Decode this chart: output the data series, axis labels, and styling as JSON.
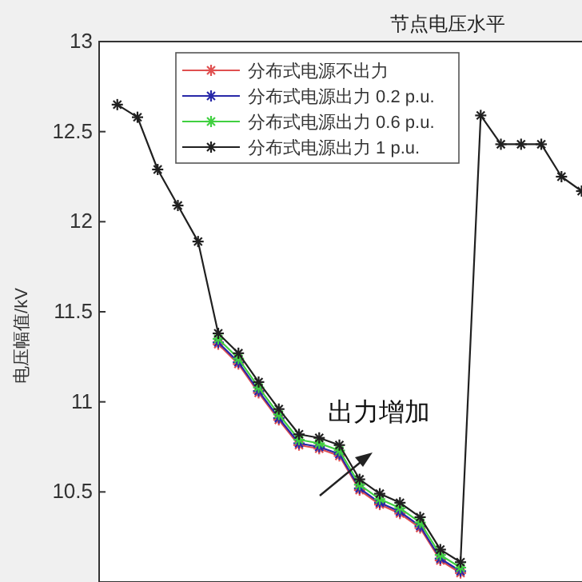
{
  "chart_data": {
    "type": "line",
    "title": "节点电压水平",
    "ylabel": "电压幅值/kV",
    "categories": [
      null,
      null,
      null,
      null,
      null,
      null,
      null,
      null,
      null,
      null,
      null,
      null,
      null,
      null,
      null,
      null,
      null,
      null,
      null,
      null,
      null,
      null,
      null,
      null
    ],
    "series": [
      {
        "name": "分布式电源不出力",
        "color": "#e05050",
        "values": [
          null,
          null,
          null,
          null,
          null,
          11.32,
          11.21,
          11.05,
          10.9,
          10.76,
          10.74,
          10.7,
          10.51,
          10.43,
          10.38,
          10.3,
          10.12,
          10.05,
          null,
          null,
          null,
          null,
          null,
          null
        ]
      },
      {
        "name": "分布式电源出力 0.2 p.u.",
        "color": "#2828a8",
        "values": [
          null,
          null,
          null,
          null,
          null,
          11.33,
          11.22,
          11.06,
          10.91,
          10.77,
          10.75,
          10.71,
          10.52,
          10.44,
          10.39,
          10.31,
          10.13,
          10.06,
          null,
          null,
          null,
          null,
          null,
          null
        ]
      },
      {
        "name": "分布式电源出力 0.6 p.u.",
        "color": "#40d040",
        "values": [
          null,
          null,
          null,
          null,
          null,
          11.35,
          11.24,
          11.08,
          10.93,
          10.79,
          10.77,
          10.73,
          10.54,
          10.46,
          10.41,
          10.33,
          10.15,
          10.08,
          null,
          null,
          null,
          null,
          null,
          null
        ]
      },
      {
        "name": "分布式电源出力 1 p.u.",
        "color": "#202020",
        "values": [
          12.65,
          12.58,
          12.29,
          12.09,
          11.89,
          11.38,
          11.27,
          11.11,
          10.96,
          10.82,
          10.8,
          10.76,
          10.57,
          10.49,
          10.44,
          10.36,
          10.18,
          10.11,
          12.59,
          12.43,
          12.43,
          12.43,
          12.25,
          12.17
        ]
      }
    ],
    "ylim": [
      10,
      13
    ],
    "yticks": [
      10.5,
      11,
      11.5,
      12,
      12.5,
      13
    ],
    "annotations": [
      {
        "text": "出力增加"
      }
    ],
    "legend": "top left",
    "marker": "cross",
    "line_style": "solid",
    "grid": false
  }
}
